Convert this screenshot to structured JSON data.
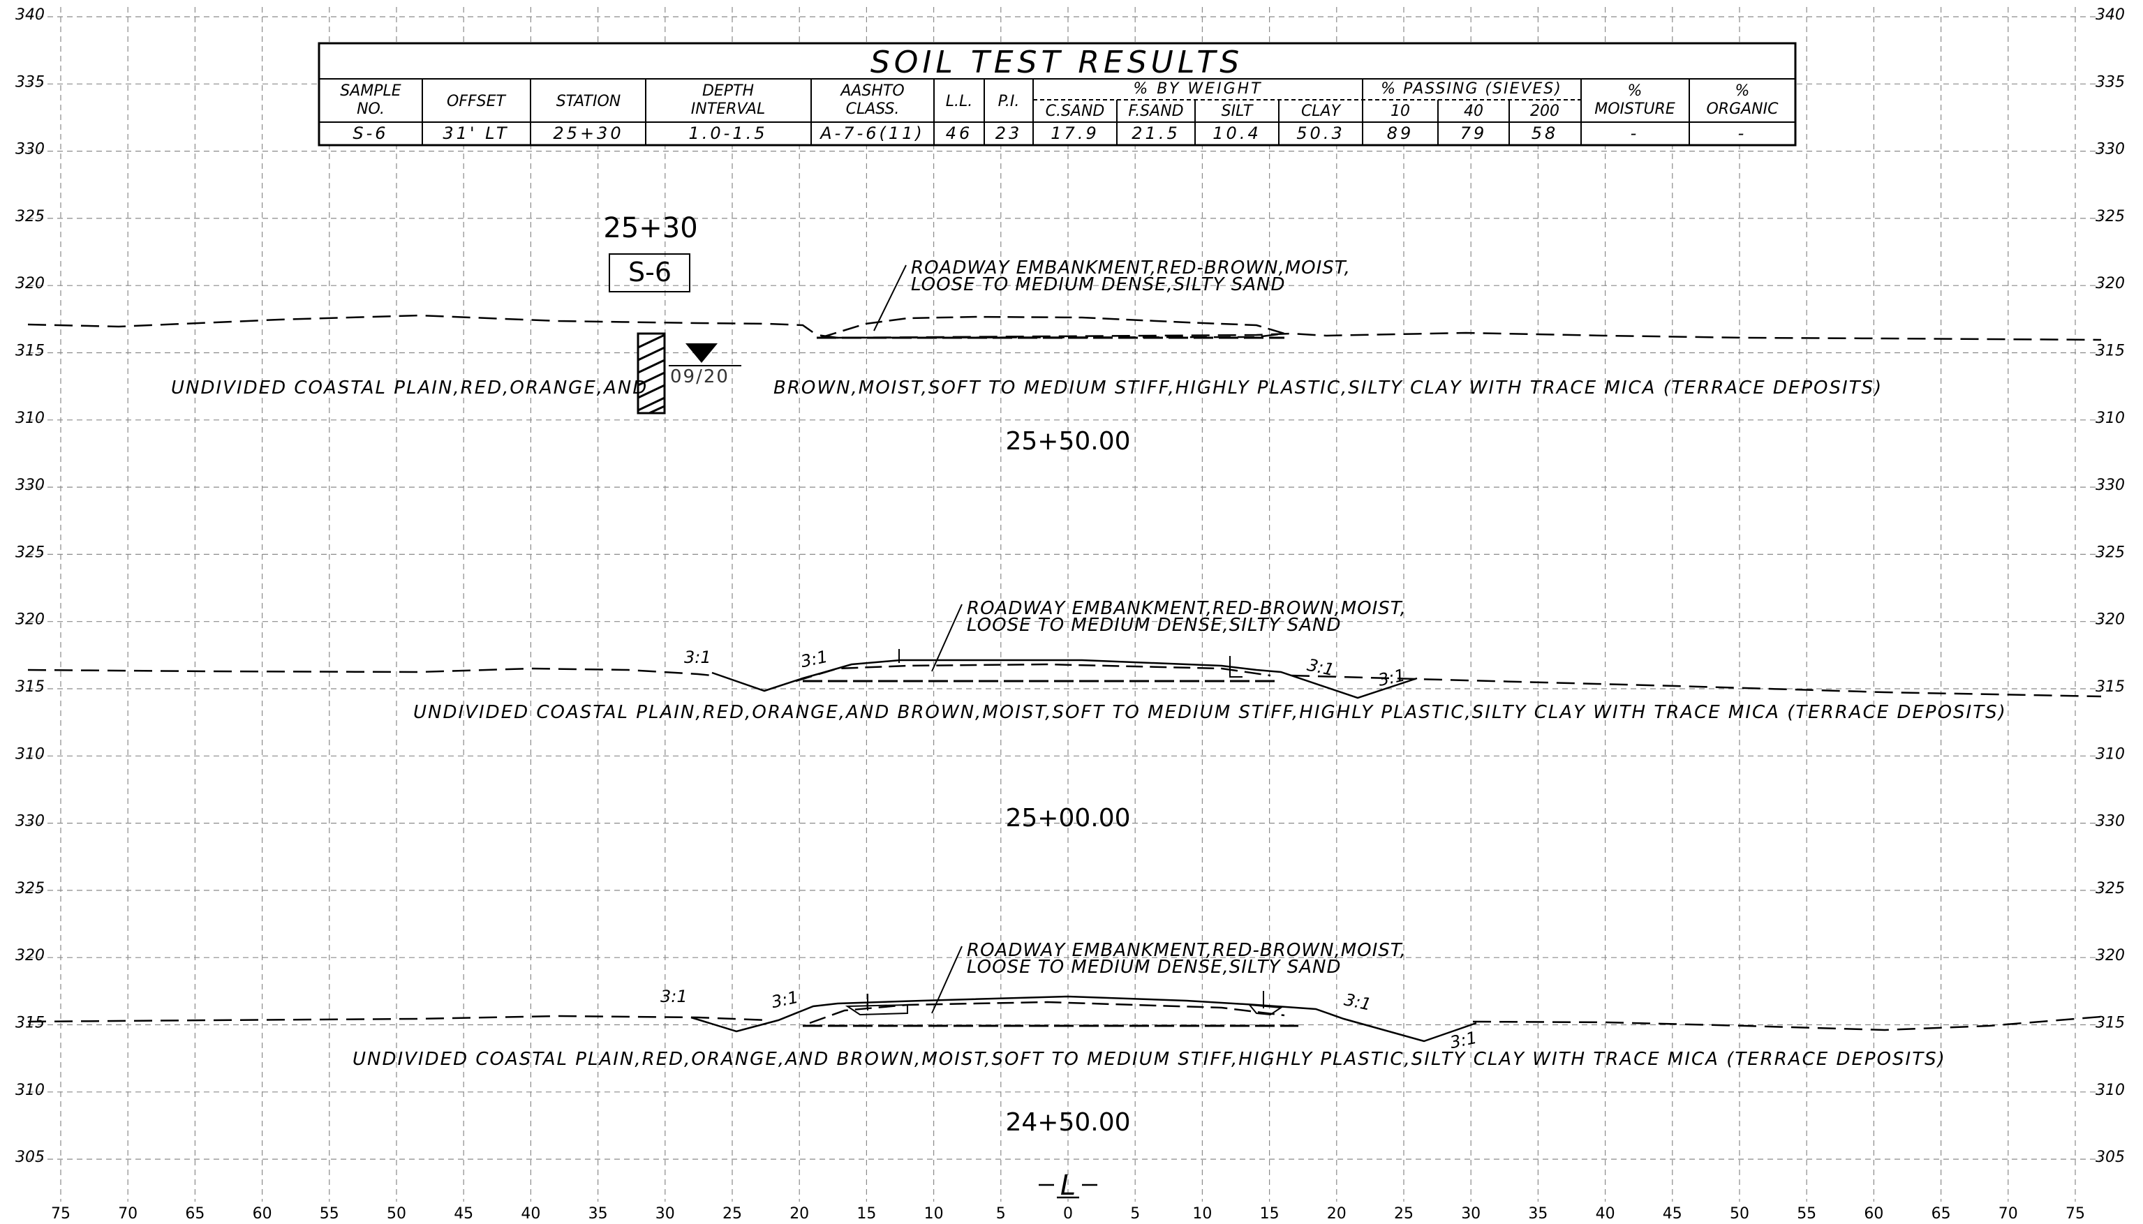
{
  "soil_table": {
    "title": "SOIL TEST RESULTS",
    "headers": {
      "sample_no": [
        "SAMPLE",
        "NO."
      ],
      "offset": "OFFSET",
      "station": "STATION",
      "depth": [
        "DEPTH",
        "INTERVAL"
      ],
      "aashto": [
        "AASHTO",
        "CLASS."
      ],
      "ll": "L.L.",
      "pi": "P.I.",
      "by_weight_group": "% BY WEIGHT",
      "by_weight": [
        "C.SAND",
        "F.SAND",
        "SILT",
        "CLAY"
      ],
      "passing_group": "% PASSING (SIEVES)",
      "passing": [
        "10",
        "40",
        "200"
      ],
      "moisture": [
        "%",
        "MOISTURE"
      ],
      "organic": [
        "%",
        "ORGANIC"
      ]
    },
    "row": [
      "S-6",
      "31' LT",
      "25+30",
      "1.0-1.5",
      "A-7-6(11)",
      "46",
      "23",
      "17.9",
      "21.5",
      "10.4",
      "50.3",
      "89",
      "79",
      "58",
      "-",
      "-"
    ]
  },
  "boring": {
    "station": "25+30",
    "sample": "S-6",
    "water_level_date": "09/20"
  },
  "sections": [
    {
      "station_label": "25+50.00",
      "elevation_labels": [
        "340",
        "335",
        "330",
        "325",
        "320",
        "315",
        "310"
      ],
      "embankment_note": [
        "ROADWAY EMBANKMENT,RED-BROWN,MOIST,",
        "LOOSE TO MEDIUM DENSE,SILTY SAND"
      ],
      "soil_note_left": "UNDIVIDED COASTAL PLAIN,RED,ORANGE,AND",
      "soil_note_right": "BROWN,MOIST,SOFT TO MEDIUM STIFF,HIGHLY PLASTIC,SILTY CLAY WITH TRACE MICA (TERRACE DEPOSITS)",
      "slopes": []
    },
    {
      "station_label": "25+00.00",
      "elevation_labels": [
        "330",
        "325",
        "320",
        "315",
        "310"
      ],
      "embankment_note": [
        "ROADWAY EMBANKMENT,RED-BROWN,MOIST,",
        "LOOSE TO MEDIUM DENSE,SILTY SAND"
      ],
      "soil_note": "UNDIVIDED COASTAL PLAIN,RED,ORANGE,AND BROWN,MOIST,SOFT TO MEDIUM STIFF,HIGHLY PLASTIC,SILTY CLAY WITH TRACE MICA (TERRACE DEPOSITS)",
      "slopes": [
        "3:1",
        "3:1",
        "3:1",
        "3:1"
      ]
    },
    {
      "station_label": "24+50.00",
      "elevation_labels": [
        "330",
        "325",
        "320",
        "315",
        "310",
        "305"
      ],
      "embankment_note": [
        "ROADWAY EMBANKMENT,RED-BROWN,MOIST,",
        "LOOSE TO MEDIUM DENSE,SILTY SAND"
      ],
      "soil_note": "UNDIVIDED COASTAL PLAIN,RED,ORANGE,AND BROWN,MOIST,SOFT TO MEDIUM STIFF,HIGHLY PLASTIC,SILTY CLAY WITH TRACE MICA (TERRACE DEPOSITS)",
      "slopes": [
        "3:1",
        "3:1",
        "3:1",
        "3:1"
      ]
    }
  ],
  "offset_axis": [
    "75",
    "70",
    "65",
    "60",
    "55",
    "50",
    "45",
    "40",
    "35",
    "30",
    "25",
    "20",
    "15",
    "10",
    "5",
    "0",
    "5",
    "10",
    "15",
    "20",
    "25",
    "30",
    "35",
    "40",
    "45",
    "50",
    "55",
    "60",
    "65",
    "70",
    "75"
  ],
  "centerline_label": "L"
}
